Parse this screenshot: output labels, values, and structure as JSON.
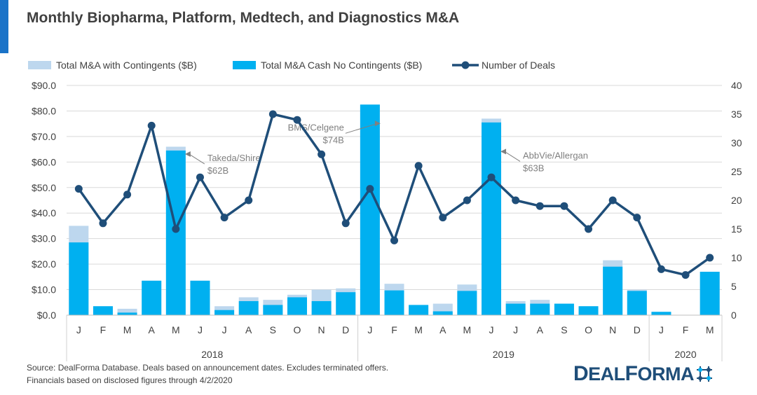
{
  "page": {
    "title": "Monthly Biopharma, Platform, Medtech, and Diagnostics M&A",
    "source_lines": [
      "Source: DealForma Database. Deals based on announcement dates. Excludes terminated offers.",
      "Financials based on disclosed figures through 4/2/2020"
    ],
    "brand_name": "DEALFORMA",
    "brand_first": "D",
    "brand_mid": "EAL",
    "brand_second": "F",
    "brand_rest": "ORMA"
  },
  "colors": {
    "contingents": "#bdd7ee",
    "cash": "#00b0f0",
    "deals_line": "#1f4e79",
    "grid": "#d9d9d9",
    "accent": "#1a73c8",
    "annotation": "#808080"
  },
  "chart_data": {
    "type": "bar",
    "title": "Monthly Biopharma, Platform, Medtech, and Diagnostics M&A",
    "categories": [
      "J",
      "F",
      "M",
      "A",
      "M",
      "J",
      "J",
      "A",
      "S",
      "O",
      "N",
      "D",
      "J",
      "F",
      "M",
      "A",
      "M",
      "J",
      "J",
      "A",
      "S",
      "O",
      "N",
      "D",
      "J",
      "F",
      "M"
    ],
    "year_groups": [
      {
        "label": "2018",
        "start": 0,
        "end": 11
      },
      {
        "label": "2019",
        "start": 12,
        "end": 23
      },
      {
        "label": "2020",
        "start": 24,
        "end": 26
      }
    ],
    "series": [
      {
        "name": "Total M&A with Contingents ($B)",
        "type": "bar",
        "axis": "left",
        "values": [
          35,
          3.5,
          2.5,
          13.5,
          66,
          13.5,
          3.5,
          7,
          6,
          8,
          10,
          10.5,
          82.5,
          12.3,
          4,
          4.5,
          12,
          77,
          5.5,
          6,
          4.5,
          3.5,
          21.5,
          10,
          1.3,
          0,
          17
        ]
      },
      {
        "name": "Total M&A Cash No Contingents ($B)",
        "type": "bar",
        "axis": "left",
        "values": [
          28.5,
          3.5,
          1,
          13.5,
          64.5,
          13.5,
          2,
          5.5,
          4,
          7,
          5.5,
          9,
          82.5,
          9.7,
          4,
          1.5,
          9.5,
          75.5,
          4.5,
          4.5,
          4.5,
          3.5,
          19,
          9.5,
          1.3,
          0,
          17
        ]
      },
      {
        "name": "Number of Deals",
        "type": "line",
        "axis": "right",
        "values": [
          22,
          16,
          21,
          33,
          15,
          24,
          17,
          20,
          35,
          34,
          28,
          16,
          22,
          13,
          26,
          17,
          20,
          24,
          20,
          19,
          19,
          15,
          20,
          17,
          8,
          7,
          10
        ]
      }
    ],
    "y_left": {
      "min": 0,
      "max": 90,
      "step": 10,
      "tick_labels": [
        "$0.0",
        "$10.0",
        "$20.0",
        "$30.0",
        "$40.0",
        "$50.0",
        "$60.0",
        "$70.0",
        "$80.0",
        "$90.0"
      ]
    },
    "y_right": {
      "min": 0,
      "max": 40,
      "step": 5,
      "tick_labels": [
        "0",
        "5",
        "10",
        "15",
        "20",
        "25",
        "30",
        "35",
        "40"
      ]
    },
    "grid": true,
    "legend_position": "top-left",
    "annotations": [
      {
        "index": 4,
        "value": 62,
        "line1": "Takeda/Shire",
        "line2": "$62B"
      },
      {
        "index": 12,
        "value": 74,
        "line1": "BMS/Celgene",
        "line2": "$74B"
      },
      {
        "index": 17,
        "value": 63,
        "line1": "AbbVie/Allergan",
        "line2": "$63B"
      }
    ]
  }
}
